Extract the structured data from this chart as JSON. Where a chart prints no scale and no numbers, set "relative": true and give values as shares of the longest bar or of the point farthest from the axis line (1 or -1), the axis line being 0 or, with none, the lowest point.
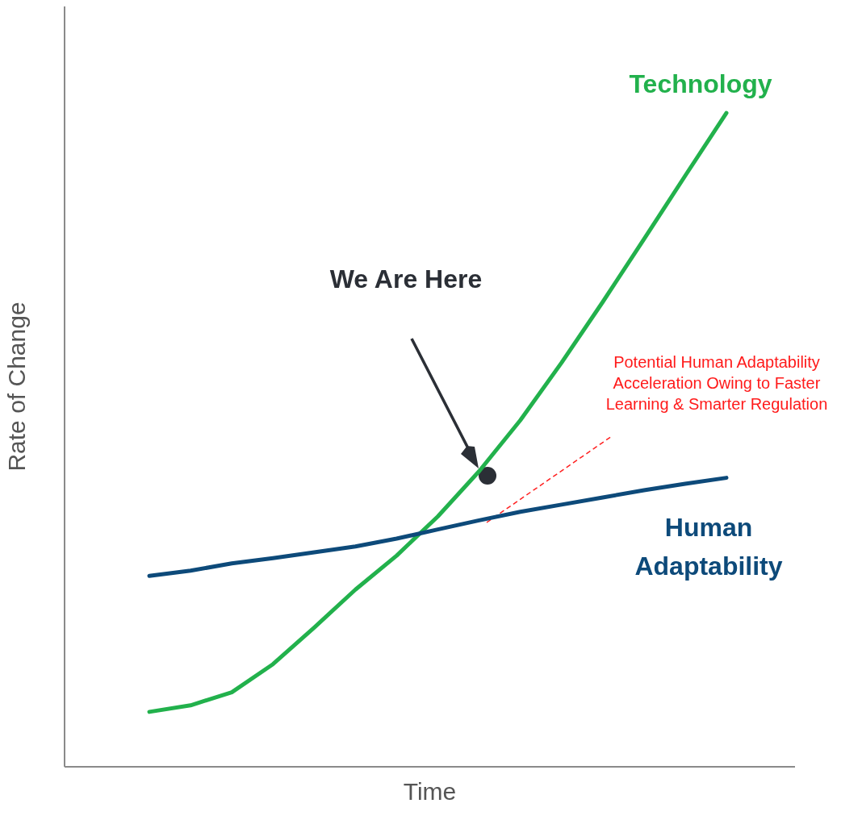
{
  "chart_data": {
    "type": "line",
    "relative": true,
    "xlabel": "Time",
    "ylabel": "Rate of Change",
    "marker": "none",
    "categories": [
      null,
      null,
      null,
      null,
      null,
      null,
      null,
      null,
      null,
      null,
      null,
      null,
      null,
      null,
      null
    ],
    "series": [
      {
        "name": "Technology",
        "color": "#22b14c",
        "line_style": "solid",
        "values": [
          0.084,
          0.094,
          0.114,
          0.157,
          0.213,
          0.271,
          0.323,
          0.383,
          0.452,
          0.53,
          0.618,
          0.711,
          0.807,
          0.904,
          1
        ]
      },
      {
        "name": "Human Adaptability",
        "color": "#0d4a7a",
        "line_style": "solid",
        "values": [
          0.292,
          0.3,
          0.311,
          0.319,
          0.328,
          0.337,
          0.349,
          0.363,
          0.377,
          0.39,
          0.401,
          0.412,
          0.423,
          0.433,
          0.442
        ]
      }
    ],
    "annotations": [
      "We Are Here",
      "Potential Human Adaptability Acceleration Owing to Faster Learning & Smarter Regulation"
    ]
  }
}
